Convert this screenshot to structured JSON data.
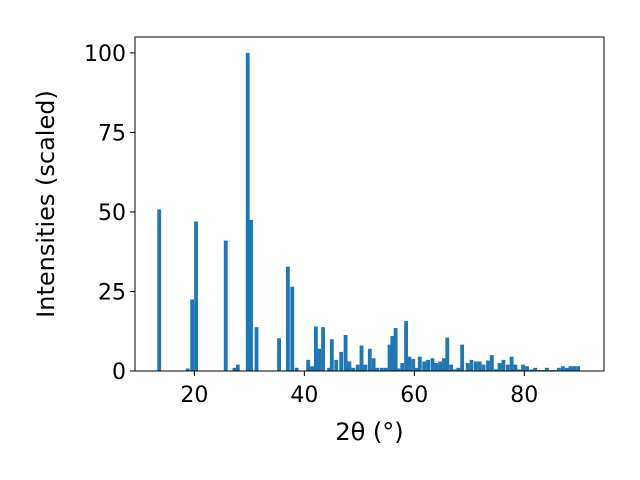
{
  "chart_data": {
    "type": "bar",
    "title": "",
    "xlabel": "2θ (°)",
    "ylabel": "Intensities (scaled)",
    "xlim": [
      9.2,
      94.5
    ],
    "ylim": [
      0,
      105
    ],
    "xticks": [
      20,
      40,
      60,
      80
    ],
    "yticks": [
      0,
      25,
      50,
      75,
      100
    ],
    "xtick_labels": [
      "20",
      "40",
      "60",
      "80"
    ],
    "ytick_labels": [
      "0",
      "25",
      "50",
      "75",
      "100"
    ],
    "bar_color": "#1f77b4",
    "bar_width": 0.7,
    "grid": false,
    "x": [
      13.6,
      18.8,
      19.6,
      20.3,
      25.7,
      27.3,
      27.9,
      29.7,
      30.3,
      31.3,
      35.4,
      37.0,
      37.8,
      38.6,
      40.7,
      41.4,
      42.1,
      42.7,
      43.4,
      44.5,
      45.0,
      45.8,
      46.7,
      47.5,
      48.2,
      48.9,
      49.7,
      50.4,
      51.1,
      51.9,
      52.6,
      53.3,
      54.1,
      54.8,
      55.5,
      56.0,
      56.6,
      57.1,
      57.8,
      58.5,
      59.1,
      59.8,
      60.4,
      61.0,
      61.8,
      62.5,
      63.3,
      64.0,
      64.7,
      65.4,
      66.0,
      66.7,
      67.3,
      68.0,
      68.7,
      69.7,
      70.4,
      71.2,
      71.9,
      72.6,
      73.4,
      74.1,
      74.8,
      75.5,
      76.2,
      77.0,
      77.7,
      78.4,
      79.1,
      79.8,
      80.5,
      81.3,
      82.0,
      82.7,
      83.4,
      84.1,
      84.9,
      85.6,
      86.3,
      87.0,
      87.7,
      88.4,
      89.1,
      89.8
    ],
    "values": [
      50.8,
      0.8,
      22.5,
      47.0,
      41.0,
      1.0,
      2.0,
      100.0,
      47.5,
      13.8,
      10.3,
      32.8,
      26.5,
      1.0,
      3.5,
      1.5,
      14.0,
      7.0,
      13.8,
      1.0,
      10.0,
      3.5,
      6.0,
      11.3,
      3.0,
      1.0,
      2.0,
      8.0,
      2.0,
      7.0,
      4.0,
      1.0,
      1.0,
      1.0,
      8.3,
      11.0,
      13.5,
      0.8,
      2.5,
      15.7,
      4.5,
      3.8,
      1.0,
      4.5,
      3.0,
      3.5,
      4.0,
      2.5,
      3.0,
      4.0,
      10.5,
      2.0,
      0.5,
      1.0,
      8.3,
      2.5,
      3.5,
      3.0,
      3.0,
      2.0,
      3.3,
      5.0,
      0.5,
      2.5,
      3.5,
      2.0,
      4.5,
      2.0,
      0.5,
      2.0,
      1.5,
      0.5,
      1.0,
      0.3,
      0.3,
      1.0,
      0.3,
      0.3,
      1.0,
      1.5,
      1.0,
      1.5,
      1.5,
      1.5
    ]
  }
}
